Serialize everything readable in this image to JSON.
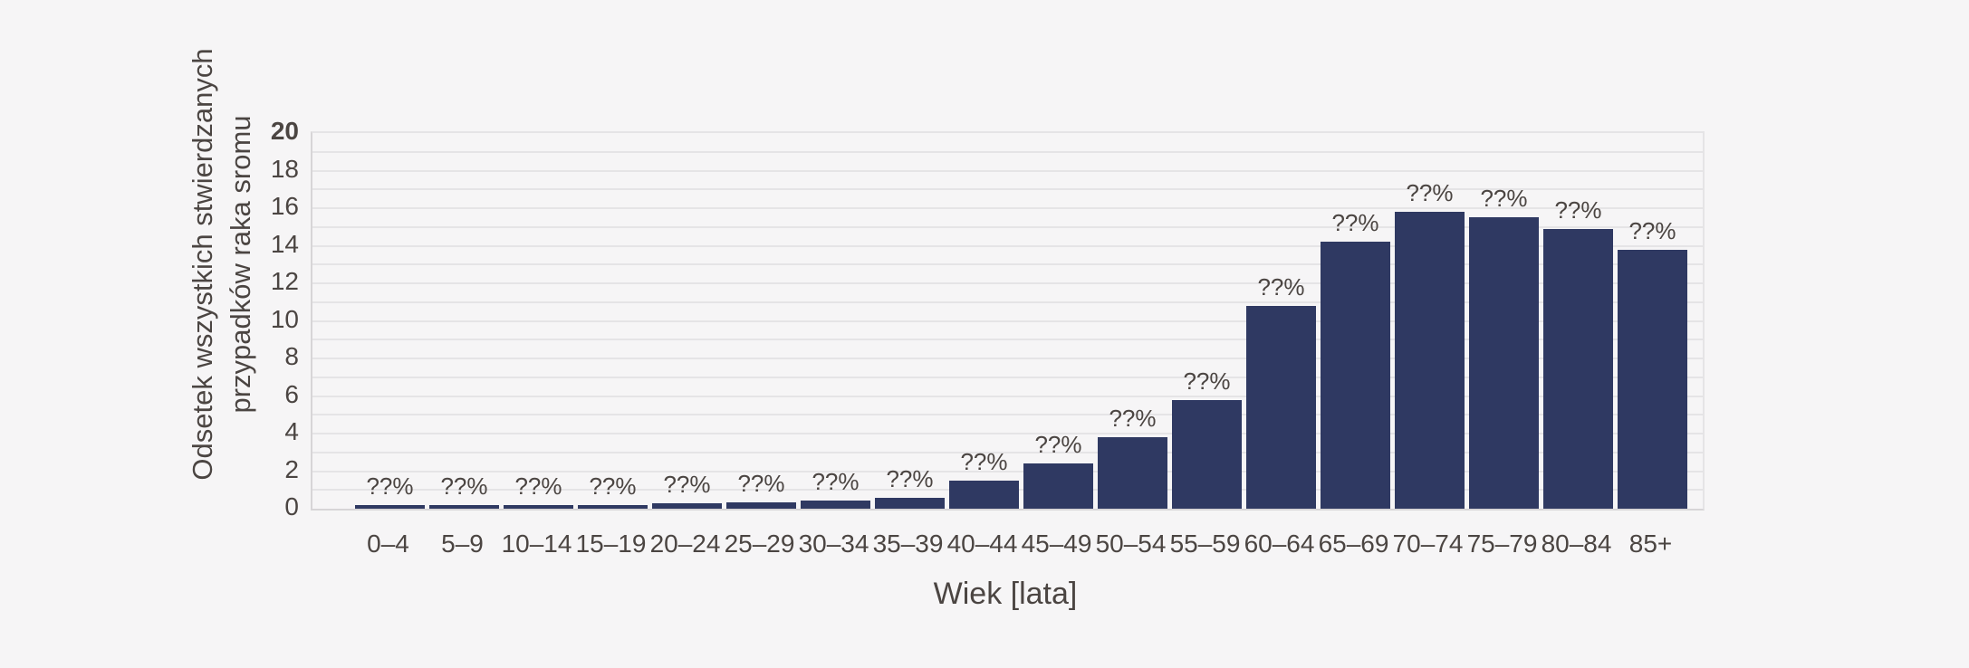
{
  "chart_data": {
    "type": "bar",
    "title": "",
    "xlabel": "Wiek [lata]",
    "ylabel": "Odsetek wszystkich stwierdzanych przypadków raka sromu",
    "ylabel_lines": [
      "Odsetek wszystkich stwierdzanych",
      "przypadków raka sromu"
    ],
    "categories": [
      "0–4",
      "5–9",
      "10–14",
      "15–19",
      "20–24",
      "25–29",
      "30–34",
      "35–39",
      "40–44",
      "45–49",
      "50–54",
      "55–59",
      "60–64",
      "65–69",
      "70–74",
      "75–79",
      "80–84",
      "85+"
    ],
    "values": [
      0.2,
      0.2,
      0.2,
      0.2,
      0.3,
      0.35,
      0.45,
      0.6,
      1.5,
      2.4,
      3.8,
      5.8,
      10.8,
      14.2,
      15.8,
      15.5,
      14.9,
      13.8
    ],
    "bar_labels": [
      "??%",
      "??%",
      "??%",
      "??%",
      "??%",
      "??%",
      "??%",
      "??%",
      "??%",
      "??%",
      "??%",
      "??%",
      "??%",
      "??%",
      "??%",
      "??%",
      "??%",
      "??%"
    ],
    "ylim": [
      0,
      20
    ],
    "ytick_labels": [
      "0",
      "2",
      "4",
      "6",
      "8",
      "10",
      "12",
      "14",
      "16",
      "18",
      "20"
    ],
    "ytick_step": 2,
    "ytick_bold": "20",
    "minor_grid_step": 1,
    "grid": "horizontal",
    "legend": null,
    "colors": {
      "bar": "#2f3962",
      "background": "#f6f5f6",
      "grid": "#e5e4e6",
      "spine": "#d7d5d7",
      "text": "#4b4542"
    }
  }
}
